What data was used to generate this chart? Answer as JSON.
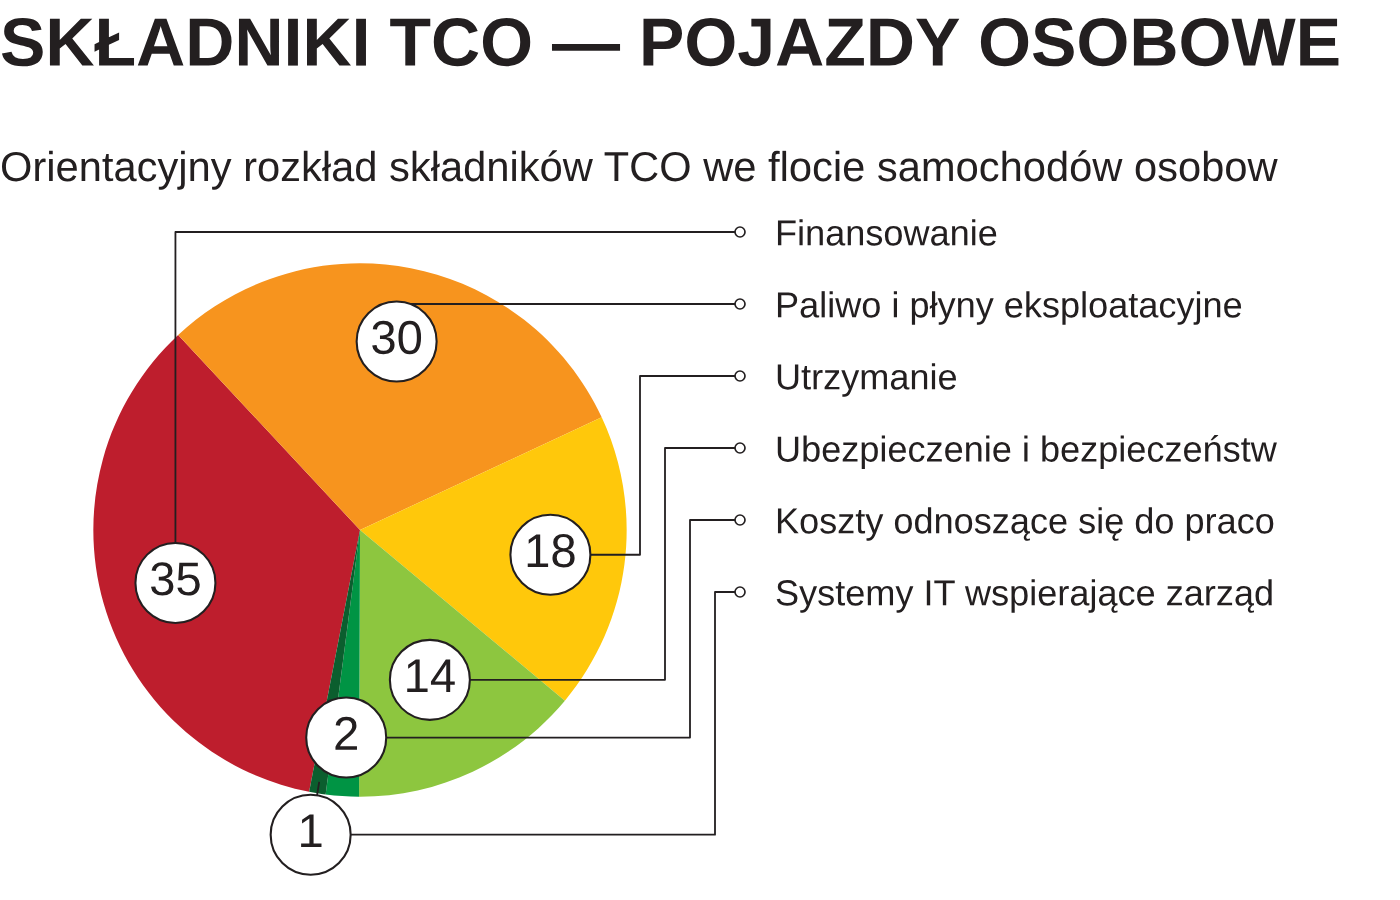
{
  "chart_data": {
    "type": "pie",
    "title": "SKŁADNIKI TCO — POJAZDY OSOBOWE",
    "subtitle": "Orientacyjny rozkład składników TCO we flocie samochodów osobow",
    "categories": [
      "Finansowanie",
      "Paliwo i płyny eksploatacyjne",
      "Utrzymanie",
      "Ubezpieczenie i bezpieczeństw",
      "Koszty odnoszące się do praco",
      "Systemy IT wspierające zarząd"
    ],
    "values": [
      35,
      30,
      18,
      14,
      2,
      1
    ],
    "colors": [
      "#be1e2d",
      "#f7941e",
      "#ffc80b",
      "#8dc63f",
      "#009444",
      "#0b5e2e"
    ],
    "data_labels": true
  }
}
